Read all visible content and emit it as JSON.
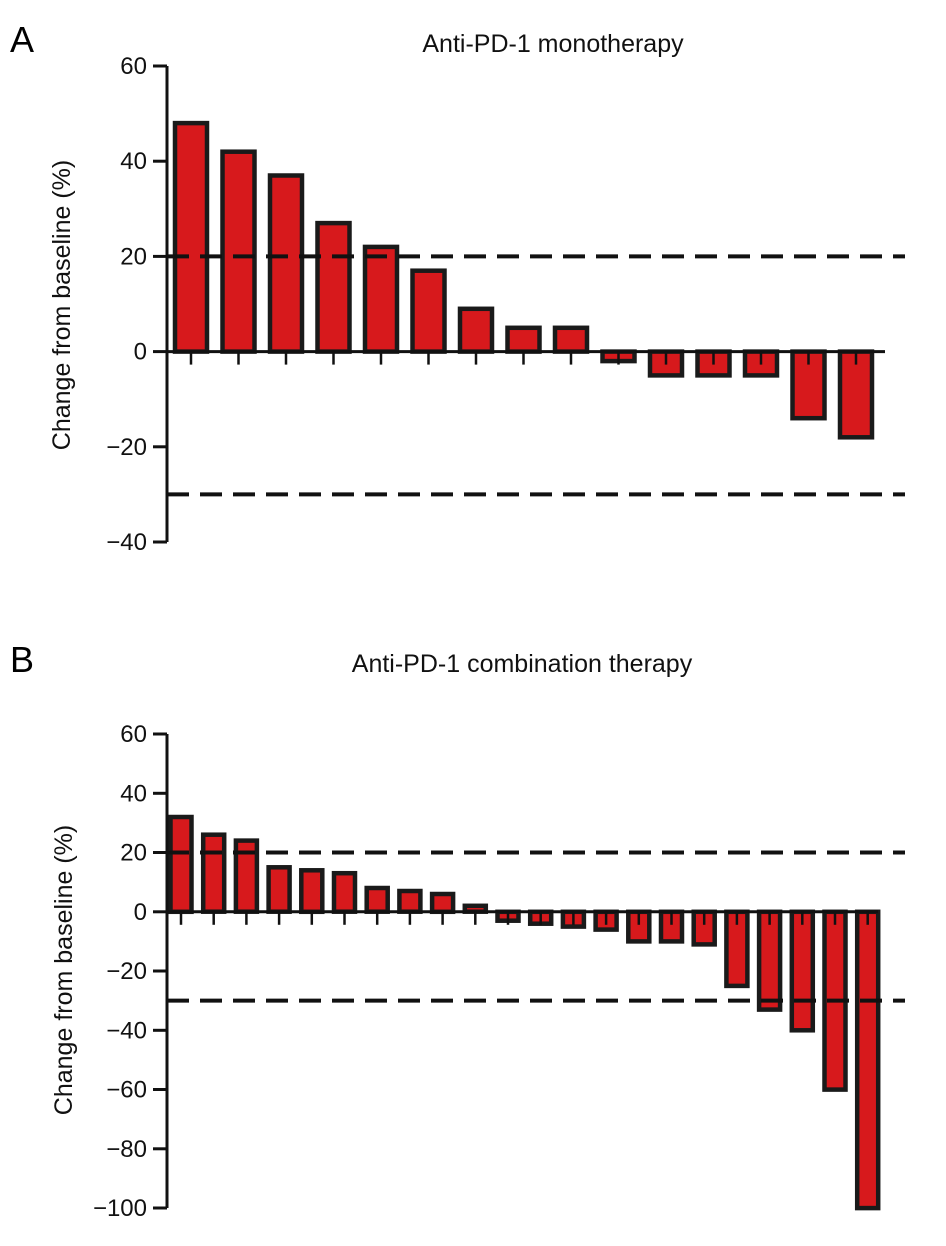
{
  "colors": {
    "bar_fill": "#d7191c",
    "bar_stroke": "#1a1a1a",
    "axis": "#111111",
    "threshold_line": "#111111"
  },
  "chart_data": [
    {
      "panel": "A",
      "type": "bar",
      "title": "Anti-PD-1 monotherapy",
      "xlabel": "",
      "ylabel": "Change from baseline (%)",
      "ylim": [
        -40,
        60
      ],
      "yticks": [
        60,
        40,
        20,
        0,
        -20,
        -40
      ],
      "ytick_labels": [
        "60",
        "40",
        "20",
        "0",
        "−20",
        "−40"
      ],
      "values": [
        48,
        42,
        37,
        27,
        22,
        17,
        9,
        5,
        5,
        -2,
        -5,
        -5,
        -5,
        -14,
        -18
      ],
      "reference_lines": [
        20,
        -30
      ],
      "grid": false,
      "legend": "none"
    },
    {
      "panel": "B",
      "type": "bar",
      "title": "Anti-PD-1 combination therapy",
      "xlabel": "",
      "ylabel": "Change from baseline (%)",
      "ylim": [
        -100,
        60
      ],
      "yticks": [
        60,
        40,
        20,
        0,
        -20,
        -40,
        -60,
        -80,
        -100
      ],
      "ytick_labels": [
        "60",
        "40",
        "20",
        "0",
        "−20",
        "−40",
        "−60",
        "−80",
        "−100"
      ],
      "values": [
        32,
        26,
        24,
        15,
        14,
        13,
        8,
        7,
        6,
        2,
        -3,
        -4,
        -5,
        -6,
        -10,
        -10,
        -11,
        -25,
        -33,
        -40,
        -60,
        -100
      ],
      "reference_lines": [
        20,
        -30
      ],
      "grid": false,
      "legend": "none"
    }
  ]
}
